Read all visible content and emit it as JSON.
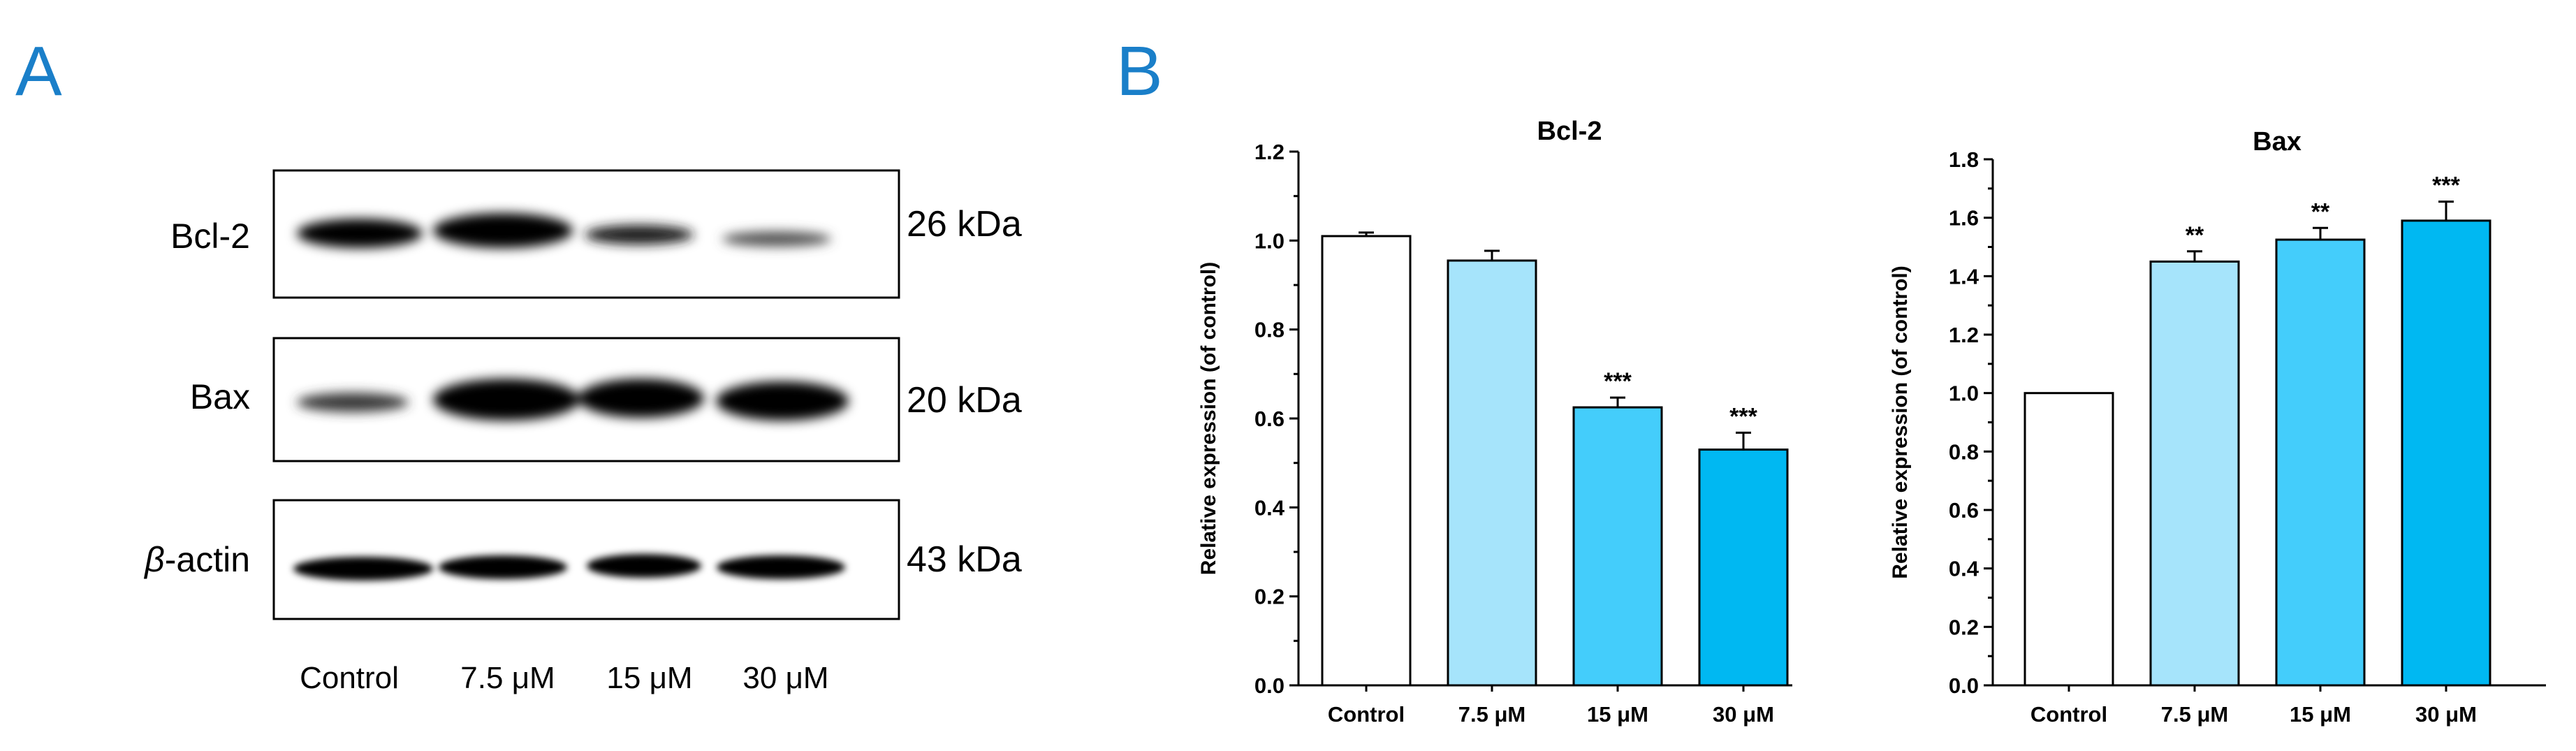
{
  "panels": {
    "a_label": "A",
    "b_label": "B"
  },
  "blot": {
    "rows": [
      {
        "protein": "Bcl-2",
        "size": "26 kDa"
      },
      {
        "protein": "Bax",
        "size": "20 kDa"
      },
      {
        "protein_prefix": "β",
        "protein": "-actin",
        "size": "43 kDa"
      }
    ],
    "lanes": [
      "Control",
      "7.5 μM",
      "15 μM",
      "30 μM"
    ]
  },
  "colors": {
    "control": "#ffffff",
    "dose_7_5": "#a6e4fb",
    "dose_15": "#44cdfb",
    "dose_30": "#00b8f2",
    "axis": "#000000",
    "panel_letter": "#1a7fc9"
  },
  "chart_data": [
    {
      "type": "bar",
      "title": "Bcl-2",
      "categories": [
        "Control",
        "7.5 μM",
        "15 μM",
        "30 μM"
      ],
      "values": [
        1.01,
        0.955,
        0.625,
        0.53
      ],
      "errors": [
        0.008,
        0.022,
        0.022,
        0.038
      ],
      "significance": [
        "",
        "",
        "***",
        "***"
      ],
      "xlabel": "",
      "ylabel": "Relative expression (of control)",
      "ylim": [
        0,
        1.2
      ],
      "yticks": [
        "0.0",
        "0.2",
        "0.4",
        "0.6",
        "0.8",
        "1.0",
        "1.2"
      ]
    },
    {
      "type": "bar",
      "title": "Bax",
      "categories": [
        "Control",
        "7.5 μM",
        "15 μM",
        "30 μM"
      ],
      "values": [
        1.0,
        1.45,
        1.525,
        1.59
      ],
      "errors": [
        0.0,
        0.035,
        0.04,
        0.065
      ],
      "significance": [
        "",
        "**",
        "**",
        "***"
      ],
      "xlabel": "",
      "ylabel": "Relative expression (of control)",
      "ylim": [
        0,
        1.8
      ],
      "yticks": [
        "0.0",
        "0.2",
        "0.4",
        "0.6",
        "0.8",
        "1.0",
        "1.2",
        "1.4",
        "1.6",
        "1.8"
      ]
    }
  ]
}
